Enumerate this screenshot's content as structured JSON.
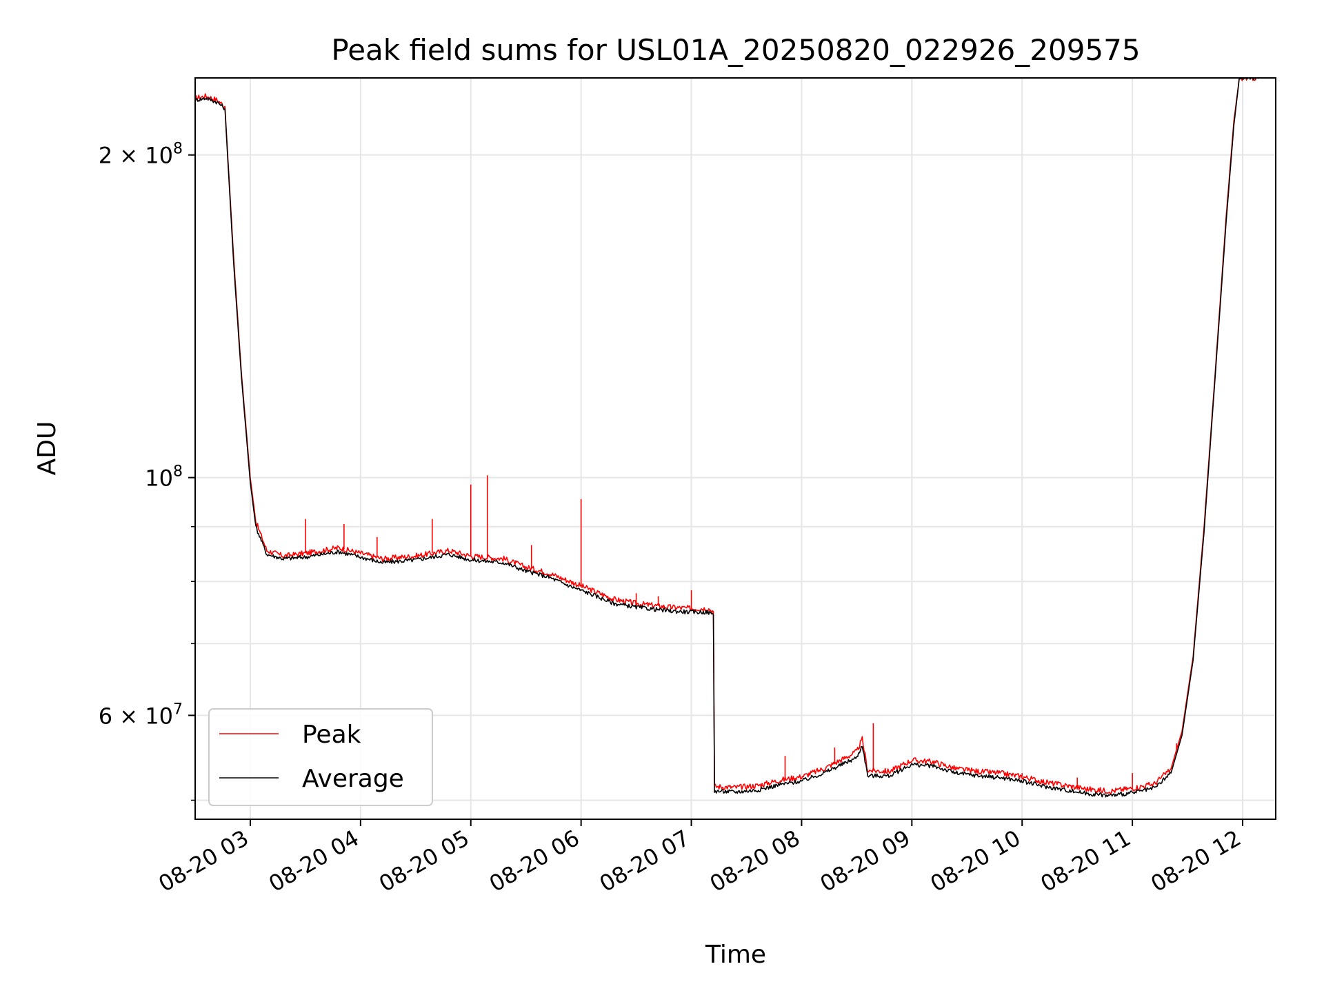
{
  "chart_data": {
    "type": "line",
    "title": "Peak field sums for USL01A_20250820_022926_209575",
    "xlabel": "Time",
    "ylabel": "ADU",
    "x_unit": "hours (2025-08-20)",
    "xlim": [
      2.5,
      12.3
    ],
    "ylim": [
      48000000,
      236000000
    ],
    "y_scale": "log",
    "grid": true,
    "legend_position": "lower-left",
    "x_ticks": [
      {
        "value": 3,
        "label": "08-20 03"
      },
      {
        "value": 4,
        "label": "08-20 04"
      },
      {
        "value": 5,
        "label": "08-20 05"
      },
      {
        "value": 6,
        "label": "08-20 06"
      },
      {
        "value": 7,
        "label": "08-20 07"
      },
      {
        "value": 8,
        "label": "08-20 08"
      },
      {
        "value": 9,
        "label": "08-20 09"
      },
      {
        "value": 10,
        "label": "08-20 10"
      },
      {
        "value": 11,
        "label": "08-20 11"
      },
      {
        "value": 12,
        "label": "08-20 12"
      }
    ],
    "y_ticks": [
      {
        "value": 200000000,
        "mantissa": "2",
        "exponent": "8"
      },
      {
        "value": 100000000,
        "mantissa": "",
        "exponent": "8"
      },
      {
        "value": 60000000,
        "mantissa": "6",
        "exponent": "7"
      }
    ],
    "y_minor_ticks": [
      50000000,
      70000000,
      80000000,
      90000000
    ],
    "series": [
      {
        "name": "Peak",
        "color": "#ff0000",
        "points": [
          [
            2.5,
            226000000
          ],
          [
            2.6,
            227000000
          ],
          [
            2.7,
            225000000
          ],
          [
            2.77,
            222000000
          ],
          [
            2.85,
            160000000
          ],
          [
            2.92,
            125000000
          ],
          [
            3.0,
            100000000
          ],
          [
            3.05,
            91000000
          ],
          [
            3.15,
            85500000
          ],
          [
            3.3,
            84500000
          ],
          [
            3.5,
            85000000
          ],
          [
            3.8,
            86000000
          ],
          [
            4.0,
            85000000
          ],
          [
            4.2,
            84000000
          ],
          [
            4.5,
            84500000
          ],
          [
            4.8,
            85500000
          ],
          [
            5.0,
            84500000
          ],
          [
            5.3,
            84000000
          ],
          [
            5.5,
            82500000
          ],
          [
            5.7,
            81500000
          ],
          [
            5.9,
            80000000
          ],
          [
            6.1,
            78500000
          ],
          [
            6.3,
            77000000
          ],
          [
            6.5,
            76300000
          ],
          [
            6.8,
            75700000
          ],
          [
            7.0,
            75500000
          ],
          [
            7.15,
            75500000
          ],
          [
            7.2,
            75000000
          ],
          [
            7.21,
            51500000
          ],
          [
            7.4,
            51400000
          ],
          [
            7.6,
            51600000
          ],
          [
            7.8,
            52200000
          ],
          [
            8.0,
            52600000
          ],
          [
            8.2,
            53500000
          ],
          [
            8.4,
            54800000
          ],
          [
            8.5,
            55500000
          ],
          [
            8.55,
            57000000
          ],
          [
            8.6,
            53300000
          ],
          [
            8.8,
            53200000
          ],
          [
            9.0,
            54500000
          ],
          [
            9.2,
            54300000
          ],
          [
            9.4,
            53500000
          ],
          [
            9.6,
            53200000
          ],
          [
            9.8,
            53000000
          ],
          [
            10.0,
            52600000
          ],
          [
            10.2,
            52000000
          ],
          [
            10.4,
            51600000
          ],
          [
            10.6,
            51200000
          ],
          [
            10.8,
            51000000
          ],
          [
            11.0,
            51300000
          ],
          [
            11.2,
            51800000
          ],
          [
            11.35,
            53500000
          ],
          [
            11.45,
            58000000
          ],
          [
            11.55,
            68000000
          ],
          [
            11.65,
            90000000
          ],
          [
            11.75,
            125000000
          ],
          [
            11.85,
            175000000
          ],
          [
            11.92,
            215000000
          ],
          [
            11.97,
            236000000
          ],
          [
            12.15,
            236000000
          ]
        ],
        "spikes": [
          [
            3.5,
            91500000
          ],
          [
            3.85,
            90500000
          ],
          [
            4.15,
            88000000
          ],
          [
            4.65,
            91500000
          ],
          [
            5.0,
            98500000
          ],
          [
            5.15,
            100500000
          ],
          [
            5.55,
            86500000
          ],
          [
            6.0,
            95500000
          ],
          [
            6.5,
            78000000
          ],
          [
            6.7,
            77500000
          ],
          [
            7.0,
            78500000
          ],
          [
            7.85,
            55000000
          ],
          [
            8.3,
            56000000
          ],
          [
            8.65,
            59000000
          ],
          [
            10.0,
            53000000
          ],
          [
            10.5,
            52500000
          ],
          [
            11.0,
            53000000
          ],
          [
            11.4,
            56500000
          ]
        ]
      },
      {
        "name": "Average",
        "color": "#000000",
        "points": [
          [
            2.5,
            225000000
          ],
          [
            2.6,
            226000000
          ],
          [
            2.7,
            224000000
          ],
          [
            2.77,
            221000000
          ],
          [
            2.85,
            158000000
          ],
          [
            2.92,
            124000000
          ],
          [
            3.0,
            99000000
          ],
          [
            3.05,
            90000000
          ],
          [
            3.15,
            84800000
          ],
          [
            3.3,
            84000000
          ],
          [
            3.5,
            84300000
          ],
          [
            3.8,
            85300000
          ],
          [
            4.0,
            84300000
          ],
          [
            4.2,
            83300000
          ],
          [
            4.5,
            83800000
          ],
          [
            4.8,
            84800000
          ],
          [
            5.0,
            83800000
          ],
          [
            5.3,
            83300000
          ],
          [
            5.5,
            81800000
          ],
          [
            5.7,
            80800000
          ],
          [
            5.9,
            79200000
          ],
          [
            6.1,
            77800000
          ],
          [
            6.3,
            76300000
          ],
          [
            6.5,
            75700000
          ],
          [
            6.8,
            75100000
          ],
          [
            7.0,
            74900000
          ],
          [
            7.15,
            74900000
          ],
          [
            7.2,
            74500000
          ],
          [
            7.21,
            51000000
          ],
          [
            7.4,
            50900000
          ],
          [
            7.6,
            51100000
          ],
          [
            7.8,
            51700000
          ],
          [
            8.0,
            52100000
          ],
          [
            8.2,
            53000000
          ],
          [
            8.4,
            54200000
          ],
          [
            8.5,
            54800000
          ],
          [
            8.55,
            56300000
          ],
          [
            8.6,
            52700000
          ],
          [
            8.8,
            52700000
          ],
          [
            9.0,
            54000000
          ],
          [
            9.2,
            53800000
          ],
          [
            9.4,
            53000000
          ],
          [
            9.6,
            52700000
          ],
          [
            9.8,
            52500000
          ],
          [
            10.0,
            52100000
          ],
          [
            10.2,
            51500000
          ],
          [
            10.4,
            51100000
          ],
          [
            10.6,
            50700000
          ],
          [
            10.8,
            50500000
          ],
          [
            11.0,
            50800000
          ],
          [
            11.2,
            51300000
          ],
          [
            11.35,
            53000000
          ],
          [
            11.45,
            57500000
          ],
          [
            11.55,
            67500000
          ],
          [
            11.65,
            89000000
          ],
          [
            11.75,
            124000000
          ],
          [
            11.85,
            173000000
          ],
          [
            11.92,
            213000000
          ],
          [
            11.97,
            236000000
          ],
          [
            12.15,
            236000000
          ]
        ]
      }
    ]
  }
}
